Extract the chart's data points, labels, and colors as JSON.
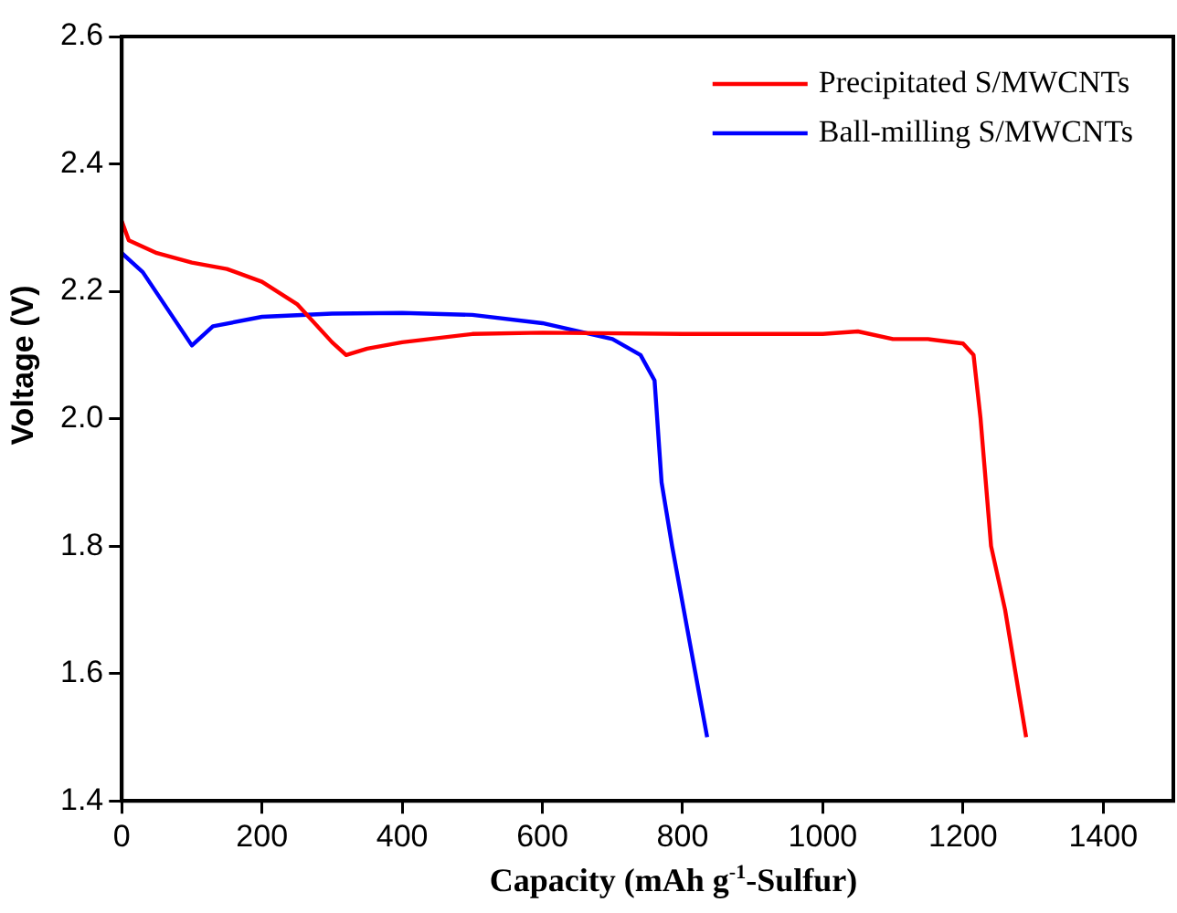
{
  "chart_data": {
    "type": "line",
    "xlabel": "Capacity (mAh g$^{-1}$-Sulfur)",
    "ylabel": "Voltage (V)",
    "xlim": [
      0,
      1500
    ],
    "xticks": [
      0,
      200,
      400,
      600,
      800,
      1000,
      1200,
      1400
    ],
    "ylim": [
      1.4,
      2.6
    ],
    "yticks": [
      {
        "value": 1.4,
        "label": "1.4"
      },
      {
        "value": 1.6,
        "label": "1.6"
      },
      {
        "value": 1.8,
        "label": "1.8"
      },
      {
        "value": 2.0,
        "label": "2.0"
      },
      {
        "value": 2.2,
        "label": "2.2"
      },
      {
        "value": 2.4,
        "label": "2.4"
      },
      {
        "value": 2.6,
        "label": "2.6"
      }
    ],
    "grid": false,
    "legend": "top right",
    "marker": "none",
    "line_style": "solid",
    "series": [
      {
        "name": "Precipitated S/MWCNTs",
        "color": "#ff0000",
        "x": [
          0,
          10,
          50,
          100,
          150,
          200,
          250,
          300,
          320,
          350,
          400,
          500,
          600,
          800,
          1000,
          1050,
          1100,
          1150,
          1200,
          1215,
          1225,
          1240,
          1260,
          1275,
          1290
        ],
        "values": [
          2.31,
          2.28,
          2.26,
          2.245,
          2.235,
          2.215,
          2.18,
          2.12,
          2.1,
          2.11,
          2.12,
          2.133,
          2.135,
          2.133,
          2.133,
          2.137,
          2.125,
          2.125,
          2.118,
          2.1,
          2.0,
          1.8,
          1.7,
          1.6,
          1.5
        ]
      },
      {
        "name": "Ball-milling S/MWCNTs",
        "color": "#0000ff",
        "x": [
          0,
          30,
          100,
          130,
          200,
          300,
          400,
          500,
          600,
          700,
          740,
          760,
          770,
          785,
          810,
          835
        ],
        "values": [
          2.26,
          2.23,
          2.115,
          2.145,
          2.16,
          2.165,
          2.166,
          2.163,
          2.15,
          2.125,
          2.1,
          2.06,
          1.9,
          1.8,
          1.65,
          1.5
        ]
      }
    ]
  }
}
